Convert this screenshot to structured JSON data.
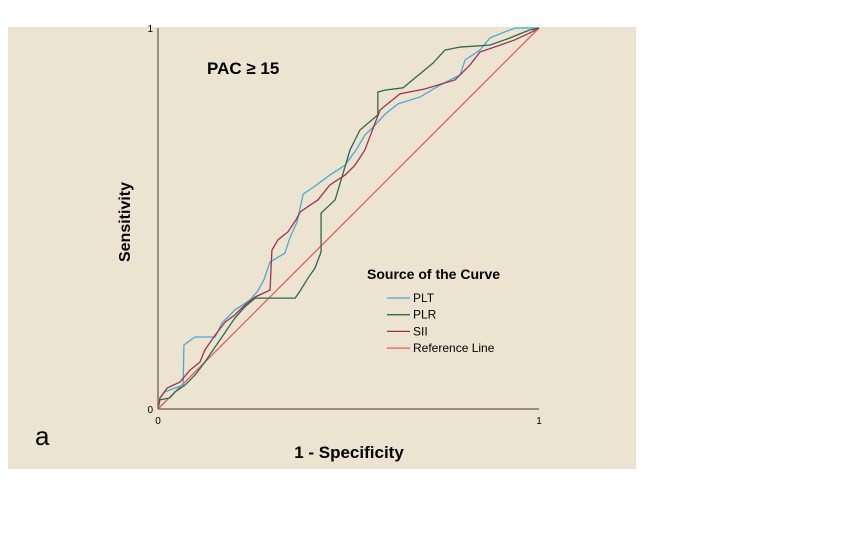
{
  "panel_label": "a",
  "chart_data": {
    "type": "line",
    "title": "PAC ≥ 15",
    "xlabel": "1 - Specificity",
    "ylabel": "Sensitivity",
    "xlim": [
      0,
      1
    ],
    "ylim": [
      0,
      1
    ],
    "x_ticks": [
      "0",
      "1"
    ],
    "y_ticks": [
      "0",
      "1"
    ],
    "grid": false,
    "legend_title": "Source of the Curve",
    "legend_placement": "center-right",
    "series": [
      {
        "name": "PLT",
        "color": "#4aa8d8",
        "points": [
          [
            0,
            0
          ],
          [
            0.005,
            0.029
          ],
          [
            0.018,
            0.045
          ],
          [
            0.066,
            0.063
          ],
          [
            0.068,
            0.168
          ],
          [
            0.097,
            0.189
          ],
          [
            0.15,
            0.189
          ],
          [
            0.168,
            0.226
          ],
          [
            0.202,
            0.26
          ],
          [
            0.241,
            0.286
          ],
          [
            0.262,
            0.31
          ],
          [
            0.278,
            0.339
          ],
          [
            0.294,
            0.386
          ],
          [
            0.333,
            0.409
          ],
          [
            0.346,
            0.449
          ],
          [
            0.365,
            0.491
          ],
          [
            0.381,
            0.564
          ],
          [
            0.412,
            0.585
          ],
          [
            0.451,
            0.614
          ],
          [
            0.491,
            0.64
          ],
          [
            0.52,
            0.68
          ],
          [
            0.543,
            0.719
          ],
          [
            0.57,
            0.745
          ],
          [
            0.596,
            0.774
          ],
          [
            0.63,
            0.801
          ],
          [
            0.688,
            0.819
          ],
          [
            0.74,
            0.85
          ],
          [
            0.793,
            0.877
          ],
          [
            0.806,
            0.916
          ],
          [
            0.845,
            0.942
          ],
          [
            0.871,
            0.974
          ],
          [
            0.911,
            0.99
          ],
          [
            0.937,
            1
          ],
          [
            1,
            1
          ]
        ]
      },
      {
        "name": "PLR",
        "color": "#2d6a4f",
        "points": [
          [
            0,
            0
          ],
          [
            0.005,
            0.024
          ],
          [
            0.031,
            0.029
          ],
          [
            0.045,
            0.045
          ],
          [
            0.071,
            0.063
          ],
          [
            0.097,
            0.089
          ],
          [
            0.123,
            0.123
          ],
          [
            0.15,
            0.163
          ],
          [
            0.168,
            0.189
          ],
          [
            0.202,
            0.239
          ],
          [
            0.228,
            0.268
          ],
          [
            0.255,
            0.291
          ],
          [
            0.36,
            0.291
          ],
          [
            0.373,
            0.31
          ],
          [
            0.394,
            0.344
          ],
          [
            0.412,
            0.37
          ],
          [
            0.428,
            0.412
          ],
          [
            0.428,
            0.514
          ],
          [
            0.465,
            0.549
          ],
          [
            0.504,
            0.68
          ],
          [
            0.517,
            0.706
          ],
          [
            0.53,
            0.732
          ],
          [
            0.577,
            0.772
          ],
          [
            0.577,
            0.832
          ],
          [
            0.596,
            0.837
          ],
          [
            0.643,
            0.843
          ],
          [
            0.722,
            0.908
          ],
          [
            0.753,
            0.942
          ],
          [
            0.793,
            0.95
          ],
          [
            0.871,
            0.955
          ],
          [
            0.924,
            0.974
          ],
          [
            0.976,
            0.995
          ],
          [
            1,
            1
          ]
        ]
      },
      {
        "name": "SII",
        "color": "#a0324f",
        "points": [
          [
            0,
            0
          ],
          [
            0.005,
            0.029
          ],
          [
            0.024,
            0.055
          ],
          [
            0.058,
            0.071
          ],
          [
            0.084,
            0.102
          ],
          [
            0.11,
            0.123
          ],
          [
            0.123,
            0.155
          ],
          [
            0.15,
            0.194
          ],
          [
            0.176,
            0.228
          ],
          [
            0.202,
            0.247
          ],
          [
            0.228,
            0.273
          ],
          [
            0.255,
            0.294
          ],
          [
            0.294,
            0.312
          ],
          [
            0.299,
            0.417
          ],
          [
            0.315,
            0.444
          ],
          [
            0.341,
            0.465
          ],
          [
            0.362,
            0.496
          ],
          [
            0.373,
            0.517
          ],
          [
            0.399,
            0.535
          ],
          [
            0.42,
            0.549
          ],
          [
            0.451,
            0.588
          ],
          [
            0.491,
            0.614
          ],
          [
            0.517,
            0.64
          ],
          [
            0.543,
            0.68
          ],
          [
            0.57,
            0.751
          ],
          [
            0.583,
            0.785
          ],
          [
            0.635,
            0.827
          ],
          [
            0.7,
            0.84
          ],
          [
            0.78,
            0.864
          ],
          [
            0.819,
            0.903
          ],
          [
            0.845,
            0.937
          ],
          [
            0.898,
            0.955
          ],
          [
            0.937,
            0.969
          ],
          [
            0.976,
            0.987
          ],
          [
            1,
            1
          ]
        ]
      },
      {
        "name": "Reference Line",
        "color": "#e06050",
        "points": [
          [
            0,
            0
          ],
          [
            1,
            1
          ]
        ]
      }
    ]
  }
}
